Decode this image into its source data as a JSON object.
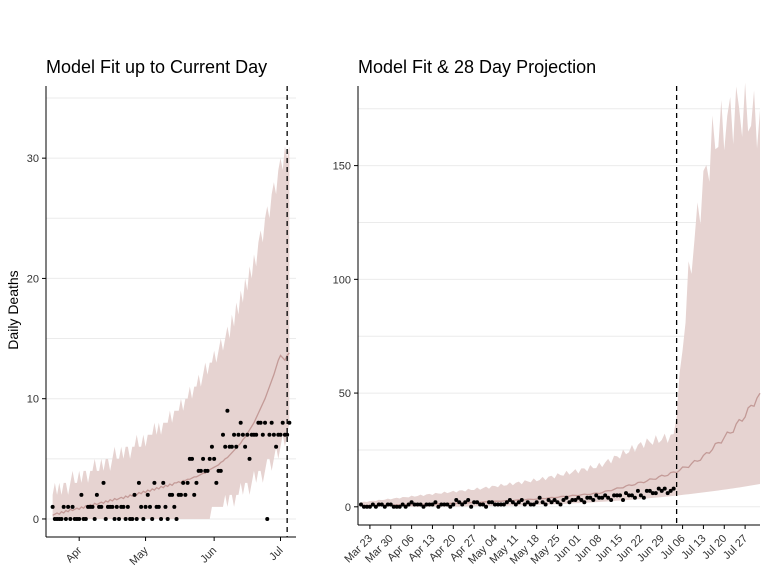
{
  "colors": {
    "ribbon": "#e6d3d1",
    "fit_line": "#c39a97",
    "points": "#000000",
    "grid": "#ebebeb",
    "vline": "#000000"
  },
  "chart_data": [
    {
      "type": "line",
      "title": "Model Fit up to Current Day",
      "ylabel": "Daily Deaths",
      "xlabel": "",
      "x_type": "date",
      "x_start": "2020-03-20",
      "x_end": "2020-07-05",
      "xlim": [
        "2020-03-17",
        "2020-07-08"
      ],
      "ylim": [
        -1.5,
        36
      ],
      "y_ticks": [
        0,
        10,
        20,
        30
      ],
      "x_ticks": [
        {
          "date": "2020-04-01",
          "label": "Apr"
        },
        {
          "date": "2020-05-01",
          "label": "May"
        },
        {
          "date": "2020-06-01",
          "label": "Jun"
        },
        {
          "date": "2020-07-01",
          "label": "Jul"
        }
      ],
      "current_day": "2020-07-04",
      "grid": true,
      "legend": "none",
      "series": [
        {
          "kind": "ribbon",
          "lower": [
            0,
            0,
            0,
            0,
            0,
            0,
            0,
            0,
            0,
            0,
            0,
            0,
            0,
            0,
            0,
            0,
            0,
            0,
            0,
            0,
            0,
            0,
            0,
            0,
            0,
            0,
            0,
            0,
            0,
            0,
            0,
            0,
            0,
            0,
            0,
            0,
            0,
            0,
            0,
            0,
            0,
            0,
            0,
            0,
            0,
            0,
            0,
            0,
            0,
            0,
            0,
            0,
            0,
            0,
            0,
            0,
            0,
            0,
            0,
            0,
            0,
            0,
            0,
            0,
            0,
            0,
            0,
            0,
            0,
            0,
            0,
            0,
            1,
            1,
            1,
            1,
            1,
            1,
            2,
            1,
            2,
            2,
            1,
            2,
            2,
            3,
            2,
            3,
            3,
            2,
            3,
            4,
            3,
            4,
            4,
            3,
            4,
            5,
            5,
            4,
            5,
            6,
            5,
            6,
            7,
            6,
            7,
            8
          ],
          "upper": [
            2,
            3,
            2,
            3,
            2,
            3,
            3,
            2,
            3,
            4,
            3,
            3,
            4,
            3,
            4,
            4,
            3,
            4,
            4,
            5,
            4,
            4,
            5,
            4,
            5,
            5,
            4,
            5,
            6,
            5,
            5,
            6,
            5,
            6,
            6,
            5,
            6,
            6,
            7,
            6,
            6,
            7,
            6,
            7,
            7,
            7,
            8,
            7,
            8,
            7,
            8,
            8,
            8,
            9,
            8,
            9,
            9,
            9,
            10,
            9,
            10,
            10,
            11,
            10,
            11,
            11,
            12,
            11,
            12,
            13,
            12,
            13,
            13,
            14,
            13,
            14,
            15,
            14,
            15,
            16,
            15,
            17,
            16,
            18,
            17,
            19,
            18,
            20,
            19,
            21,
            20,
            22,
            21,
            23,
            24,
            23,
            25,
            26,
            25,
            27,
            28,
            27,
            29,
            30,
            29,
            31,
            30,
            31
          ]
        },
        {
          "kind": "line",
          "name": "",
          "values": [
            0.3,
            0.4,
            0.5,
            0.4,
            0.6,
            0.5,
            0.7,
            0.6,
            0.8,
            0.7,
            0.8,
            0.9,
            0.8,
            1.0,
            0.9,
            1.1,
            1.0,
            1.2,
            1.1,
            1.3,
            1.2,
            1.3,
            1.4,
            1.3,
            1.5,
            1.4,
            1.6,
            1.5,
            1.7,
            1.6,
            1.7,
            1.8,
            1.7,
            1.9,
            1.8,
            2.0,
            1.9,
            2.1,
            2.0,
            2.2,
            2.1,
            2.3,
            2.2,
            2.4,
            2.3,
            2.5,
            2.4,
            2.6,
            2.5,
            2.7,
            2.6,
            2.8,
            2.7,
            2.9,
            2.8,
            3.0,
            3.0,
            3.1,
            3.0,
            3.2,
            3.2,
            3.3,
            3.3,
            3.4,
            3.5,
            3.5,
            3.6,
            3.7,
            3.8,
            3.8,
            4.0,
            4.1,
            4.2,
            4.3,
            4.4,
            4.5,
            4.7,
            4.8,
            5.0,
            5.1,
            5.3,
            5.5,
            5.7,
            5.9,
            6.1,
            6.3,
            6.6,
            6.8,
            7.1,
            7.4,
            7.7,
            8.0,
            8.4,
            8.8,
            9.2,
            9.6,
            10.0,
            10.5,
            11.0,
            11.5,
            12.0,
            12.6,
            13.2,
            13.6,
            13.4,
            13.2,
            13.6,
            13.8
          ]
        },
        {
          "kind": "points",
          "name": "",
          "values": [
            1,
            0,
            0,
            0,
            0,
            1,
            0,
            1,
            0,
            1,
            0,
            0,
            0,
            2,
            0,
            0,
            1,
            1,
            1,
            0,
            2,
            1,
            1,
            3,
            0,
            1,
            1,
            1,
            0,
            1,
            0,
            1,
            1,
            0,
            1,
            0,
            0,
            2,
            0,
            3,
            1,
            0,
            1,
            2,
            1,
            0,
            3,
            1,
            1,
            0,
            3,
            1,
            0,
            2,
            2,
            1,
            0,
            2,
            2,
            3,
            2,
            3,
            5,
            5,
            2,
            3,
            4,
            4,
            5,
            4,
            4,
            5,
            6,
            5,
            3,
            4,
            4,
            7,
            6,
            9,
            6,
            6,
            7,
            6,
            7,
            8,
            7,
            6,
            7,
            5,
            7,
            7,
            7,
            8,
            8,
            7,
            8,
            0,
            7,
            8,
            7,
            6,
            7,
            7,
            8,
            7,
            7,
            8
          ]
        }
      ]
    },
    {
      "type": "line",
      "title": "Model Fit & 28 Day Projection",
      "ylabel": "",
      "xlabel": "",
      "x_type": "date",
      "x_start": "2020-03-20",
      "x_end": "2020-08-01",
      "xlim": [
        "2020-03-19",
        "2020-08-01"
      ],
      "ylim": [
        -8,
        185
      ],
      "y_ticks": [
        0,
        50,
        100,
        150
      ],
      "x_ticks": [
        {
          "date": "2020-03-23",
          "label": "Mar 23"
        },
        {
          "date": "2020-03-30",
          "label": "Mar 30"
        },
        {
          "date": "2020-04-06",
          "label": "Apr 06"
        },
        {
          "date": "2020-04-13",
          "label": "Apr 13"
        },
        {
          "date": "2020-04-20",
          "label": "Apr 20"
        },
        {
          "date": "2020-04-27",
          "label": "Apr 27"
        },
        {
          "date": "2020-05-04",
          "label": "May 04"
        },
        {
          "date": "2020-05-11",
          "label": "May 11"
        },
        {
          "date": "2020-05-18",
          "label": "May 18"
        },
        {
          "date": "2020-05-25",
          "label": "May 25"
        },
        {
          "date": "2020-06-01",
          "label": "Jun 01"
        },
        {
          "date": "2020-06-08",
          "label": "Jun 08"
        },
        {
          "date": "2020-06-15",
          "label": "Jun 15"
        },
        {
          "date": "2020-06-22",
          "label": "Jun 22"
        },
        {
          "date": "2020-06-29",
          "label": "Jun 29"
        },
        {
          "date": "2020-07-06",
          "label": "Jul 06"
        },
        {
          "date": "2020-07-13",
          "label": "Jul 13"
        },
        {
          "date": "2020-07-20",
          "label": "Jul 20"
        },
        {
          "date": "2020-07-27",
          "label": "Jul 27"
        }
      ],
      "current_day": "2020-07-04",
      "grid": true,
      "legend": "none",
      "series": [
        {
          "kind": "ribbon",
          "lower_start": 0,
          "lower_end": 10,
          "upper_knots": [
            [
              0,
              2
            ],
            [
              20,
              5
            ],
            [
              40,
              8
            ],
            [
              60,
              12
            ],
            [
              80,
              18
            ],
            [
              95,
              28
            ],
            [
              105,
              31
            ],
            [
              107,
              55
            ],
            [
              110,
              100
            ],
            [
              114,
              135
            ],
            [
              118,
              160
            ],
            [
              122,
              168
            ],
            [
              126,
              175
            ],
            [
              133,
              170
            ]
          ]
        },
        {
          "kind": "line",
          "name": "",
          "knots": [
            [
              0,
              0.5
            ],
            [
              20,
              1
            ],
            [
              40,
              2
            ],
            [
              60,
              3.5
            ],
            [
              80,
              6
            ],
            [
              95,
              11
            ],
            [
              105,
              15
            ],
            [
              110,
              18
            ],
            [
              115,
              22
            ],
            [
              120,
              28
            ],
            [
              125,
              34
            ],
            [
              130,
              42
            ],
            [
              133,
              48
            ]
          ]
        },
        {
          "kind": "points",
          "name": "",
          "values": [
            1,
            0,
            0,
            0,
            1,
            0,
            1,
            1,
            0,
            1,
            1,
            0,
            0,
            0,
            1,
            0,
            1,
            2,
            1,
            1,
            1,
            0,
            1,
            1,
            1,
            2,
            0,
            1,
            1,
            1,
            0,
            1,
            3,
            2,
            1,
            2,
            3,
            0,
            2,
            2,
            1,
            1,
            0,
            2,
            2,
            1,
            1,
            1,
            1,
            2,
            3,
            2,
            1,
            2,
            3,
            1,
            2,
            1,
            1,
            2,
            4,
            2,
            1,
            3,
            2,
            3,
            2,
            1,
            3,
            4,
            2,
            3,
            3,
            4,
            3,
            2,
            4,
            4,
            3,
            5,
            4,
            4,
            5,
            4,
            3,
            5,
            5,
            5,
            3,
            6,
            5,
            5,
            4,
            7,
            5,
            4,
            7,
            7,
            6,
            6,
            8,
            7,
            8,
            6,
            7,
            8
          ]
        }
      ]
    }
  ]
}
